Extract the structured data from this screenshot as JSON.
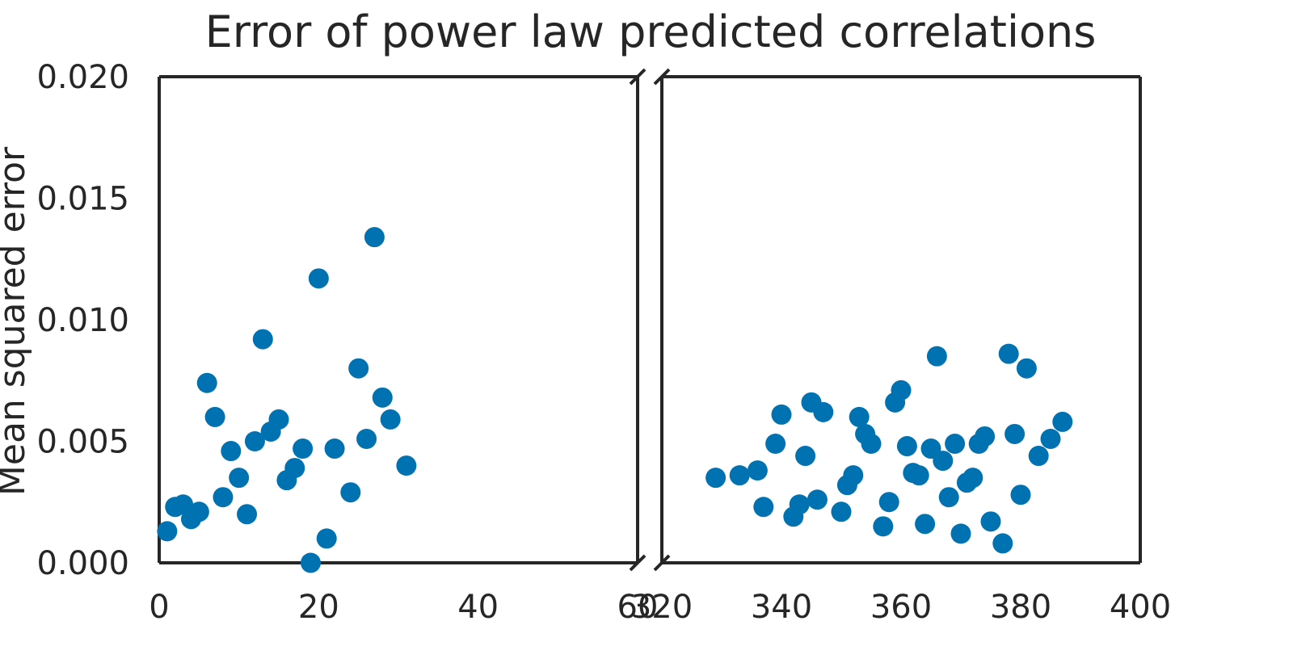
{
  "chart_data": {
    "type": "scatter",
    "title": "Error of power law predicted correlations",
    "xlabel": "",
    "ylabel": "Mean squared error",
    "ylim": [
      0,
      0.02
    ],
    "yticks": [
      "0.000",
      "0.005",
      "0.010",
      "0.015",
      "0.020"
    ],
    "grid": false,
    "broken_x_axis": true,
    "color": "#0072b2",
    "panels": [
      {
        "xlim": [
          0,
          60
        ],
        "xticks": [
          "0",
          "20",
          "40",
          "60"
        ],
        "points": [
          [
            1,
            0.0013
          ],
          [
            2,
            0.0023
          ],
          [
            3,
            0.0024
          ],
          [
            4,
            0.0018
          ],
          [
            5,
            0.0021
          ],
          [
            6,
            0.0074
          ],
          [
            7,
            0.006
          ],
          [
            8,
            0.0027
          ],
          [
            9,
            0.0046
          ],
          [
            10,
            0.0035
          ],
          [
            11,
            0.002
          ],
          [
            12,
            0.005
          ],
          [
            13,
            0.0092
          ],
          [
            14,
            0.0054
          ],
          [
            15,
            0.0059
          ],
          [
            16,
            0.0034
          ],
          [
            17,
            0.0039
          ],
          [
            18,
            0.0047
          ],
          [
            19,
            0.0
          ],
          [
            20,
            0.0117
          ],
          [
            21,
            0.001
          ],
          [
            22,
            0.0047
          ],
          [
            24,
            0.0029
          ],
          [
            25,
            0.008
          ],
          [
            26,
            0.0051
          ],
          [
            27,
            0.0134
          ],
          [
            28,
            0.0068
          ],
          [
            29,
            0.0059
          ],
          [
            31,
            0.004
          ]
        ]
      },
      {
        "xlim": [
          320,
          400
        ],
        "xticks": [
          "320",
          "340",
          "360",
          "380",
          "400"
        ],
        "points": [
          [
            329,
            0.0035
          ],
          [
            333,
            0.0036
          ],
          [
            336,
            0.0038
          ],
          [
            337,
            0.0023
          ],
          [
            339,
            0.0049
          ],
          [
            340,
            0.0061
          ],
          [
            342,
            0.0019
          ],
          [
            343,
            0.0024
          ],
          [
            344,
            0.0044
          ],
          [
            345,
            0.0066
          ],
          [
            346,
            0.0026
          ],
          [
            347,
            0.0062
          ],
          [
            350,
            0.0021
          ],
          [
            351,
            0.0032
          ],
          [
            352,
            0.0036
          ],
          [
            353,
            0.006
          ],
          [
            354,
            0.0053
          ],
          [
            355,
            0.0049
          ],
          [
            357,
            0.0015
          ],
          [
            358,
            0.0025
          ],
          [
            359,
            0.0066
          ],
          [
            360,
            0.0071
          ],
          [
            361,
            0.0048
          ],
          [
            362,
            0.0037
          ],
          [
            363,
            0.0036
          ],
          [
            364,
            0.0016
          ],
          [
            365,
            0.0047
          ],
          [
            366,
            0.0085
          ],
          [
            367,
            0.0042
          ],
          [
            368,
            0.0027
          ],
          [
            369,
            0.0049
          ],
          [
            370,
            0.0012
          ],
          [
            371,
            0.0033
          ],
          [
            372,
            0.0035
          ],
          [
            373,
            0.0049
          ],
          [
            374,
            0.0052
          ],
          [
            375,
            0.0017
          ],
          [
            377,
            0.0008
          ],
          [
            378,
            0.0086
          ],
          [
            379,
            0.0053
          ],
          [
            380,
            0.0028
          ],
          [
            381,
            0.008
          ],
          [
            383,
            0.0044
          ],
          [
            385,
            0.0051
          ],
          [
            387,
            0.0058
          ]
        ]
      }
    ]
  }
}
